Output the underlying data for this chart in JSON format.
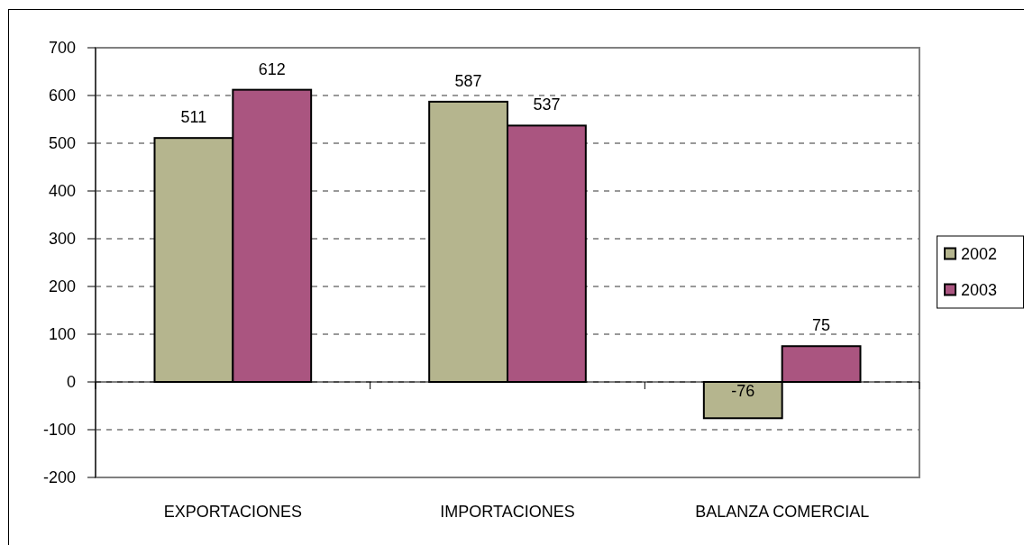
{
  "chart_data": {
    "type": "bar",
    "categories": [
      "EXPORTACIONES",
      "IMPORTACIONES",
      "BALANZA COMERCIAL"
    ],
    "series": [
      {
        "name": "2002",
        "color": "#b5b58e",
        "values": [
          511,
          587,
          -76
        ]
      },
      {
        "name": "2003",
        "color": "#aa5580",
        "values": [
          612,
          537,
          75
        ]
      }
    ],
    "ylim": [
      -200,
      700
    ],
    "yticks": [
      -200,
      -100,
      0,
      100,
      200,
      300,
      400,
      500,
      600,
      700
    ],
    "grid": "y",
    "legend": "right",
    "data_labels": true
  }
}
